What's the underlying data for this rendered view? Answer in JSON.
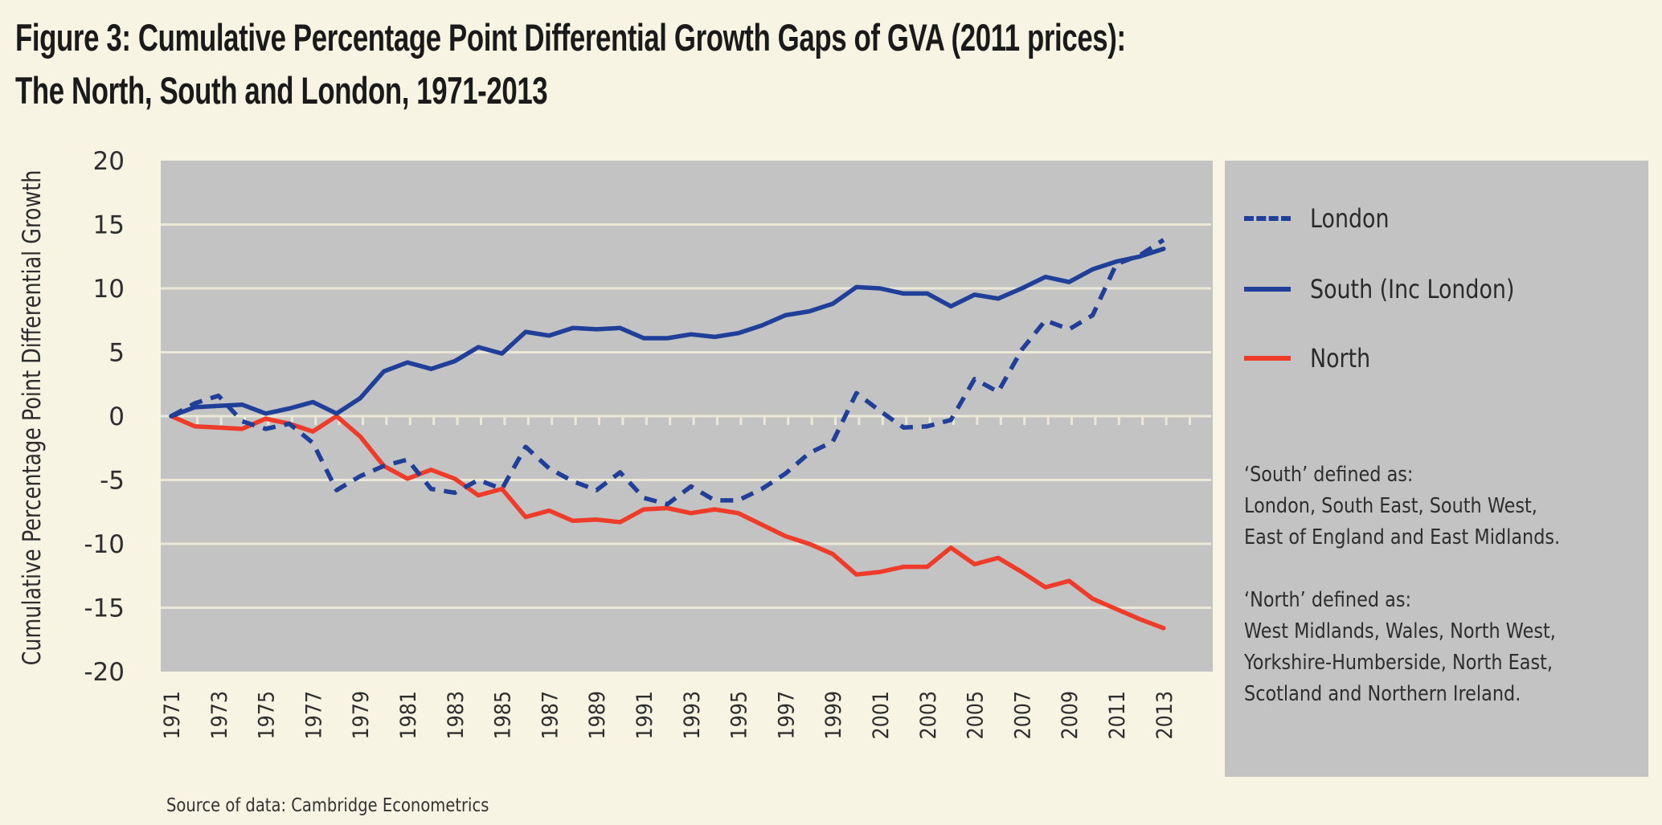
{
  "title": {
    "line1": "Figure 3: Cumulative Percentage Point Differential Growth Gaps of GVA (2011 prices):",
    "line2": "The North, South and London, 1971-2013"
  },
  "source": "Source of data: Cambridge Econometrics",
  "legend": {
    "items": [
      {
        "label": "London",
        "style": "dashed",
        "color": "#1f3f99"
      },
      {
        "label": "South (Inc London)",
        "style": "solid",
        "color": "#1f3f99"
      },
      {
        "label": "North",
        "style": "solid",
        "color": "#ee3b2a"
      }
    ],
    "notes": {
      "south_heading": "‘South’ defined as:",
      "south_lines": [
        "London, South East, South West,",
        "East of England and East Midlands."
      ],
      "north_heading": "‘North’ defined as:",
      "north_lines": [
        "West Midlands, Wales, North West,",
        "Yorkshire-Humberside, North East,",
        "Scotland and Northern Ireland."
      ]
    }
  },
  "colors": {
    "background": "#f8f4e3",
    "plot_background": "#c2c3c2",
    "gridline": "#ece8d8",
    "blue": "#1f3f99",
    "red": "#ee3b2a"
  },
  "chart_data": {
    "type": "line",
    "title": "Figure 3: Cumulative Percentage Point Differential Growth Gaps of GVA (2011 prices): The North, South and London, 1971-2013",
    "xlabel": "",
    "ylabel": "Cumulative Percentage Point Differential Growth",
    "ylim": [
      -20,
      20
    ],
    "yticks": [
      20,
      15,
      10,
      5,
      0,
      -5,
      -10,
      -15,
      -20
    ],
    "xticks": [
      "1971",
      "1973",
      "1975",
      "1977",
      "1979",
      "1981",
      "1983",
      "1985",
      "1987",
      "1989",
      "1991",
      "1993",
      "1995",
      "1997",
      "1999",
      "2001",
      "2003",
      "2005",
      "2007",
      "2009",
      "2011",
      "2013"
    ],
    "grid": true,
    "legend_position": "right",
    "x": [
      1971,
      1972,
      1973,
      1974,
      1975,
      1976,
      1977,
      1978,
      1979,
      1980,
      1981,
      1982,
      1983,
      1984,
      1985,
      1986,
      1987,
      1988,
      1989,
      1990,
      1991,
      1992,
      1993,
      1994,
      1995,
      1996,
      1997,
      1998,
      1999,
      2000,
      2001,
      2002,
      2003,
      2004,
      2005,
      2006,
      2007,
      2008,
      2009,
      2010,
      2011,
      2012,
      2013
    ],
    "series": [
      {
        "name": "London",
        "style": "dashed",
        "color": "#1f3f99",
        "values": [
          0,
          1.0,
          1.6,
          -0.4,
          -1.0,
          -0.6,
          -2.1,
          -5.8,
          -4.7,
          -3.9,
          -3.4,
          -5.7,
          -6.0,
          -5.0,
          -5.7,
          -2.4,
          -4.1,
          -5.1,
          -5.8,
          -4.4,
          -6.4,
          -6.9,
          -5.5,
          -6.6,
          -6.6,
          -5.7,
          -4.5,
          -2.9,
          -2.0,
          1.8,
          0.4,
          -0.9,
          -0.8,
          -0.3,
          2.9,
          1.9,
          5.2,
          7.5,
          6.8,
          7.9,
          11.9,
          12.6,
          13.8
        ]
      },
      {
        "name": "South (Inc London)",
        "style": "solid",
        "color": "#1f3f99",
        "values": [
          0,
          0.7,
          0.8,
          0.9,
          0.2,
          0.6,
          1.1,
          0.2,
          1.4,
          3.5,
          4.2,
          3.7,
          4.3,
          5.4,
          4.9,
          6.6,
          6.3,
          6.9,
          6.8,
          6.9,
          6.1,
          6.1,
          6.4,
          6.2,
          6.5,
          7.1,
          7.9,
          8.2,
          8.8,
          10.1,
          10.0,
          9.6,
          9.6,
          8.6,
          9.5,
          9.2,
          10.0,
          10.9,
          10.5,
          11.5,
          12.1,
          12.5,
          13.1
        ]
      },
      {
        "name": "North",
        "style": "solid",
        "color": "#ee3b2a",
        "values": [
          0,
          -0.8,
          -0.9,
          -1.0,
          -0.2,
          -0.6,
          -1.2,
          0,
          -1.6,
          -3.9,
          -4.9,
          -4.2,
          -4.9,
          -6.2,
          -5.7,
          -7.9,
          -7.4,
          -8.2,
          -8.1,
          -8.3,
          -7.3,
          -7.2,
          -7.6,
          -7.3,
          -7.6,
          -8.5,
          -9.4,
          -10.0,
          -10.8,
          -12.4,
          -12.2,
          -11.8,
          -11.8,
          -10.3,
          -11.6,
          -11.1,
          -12.2,
          -13.4,
          -12.9,
          -14.3,
          -15.1,
          -15.9,
          -16.6
        ]
      }
    ]
  }
}
